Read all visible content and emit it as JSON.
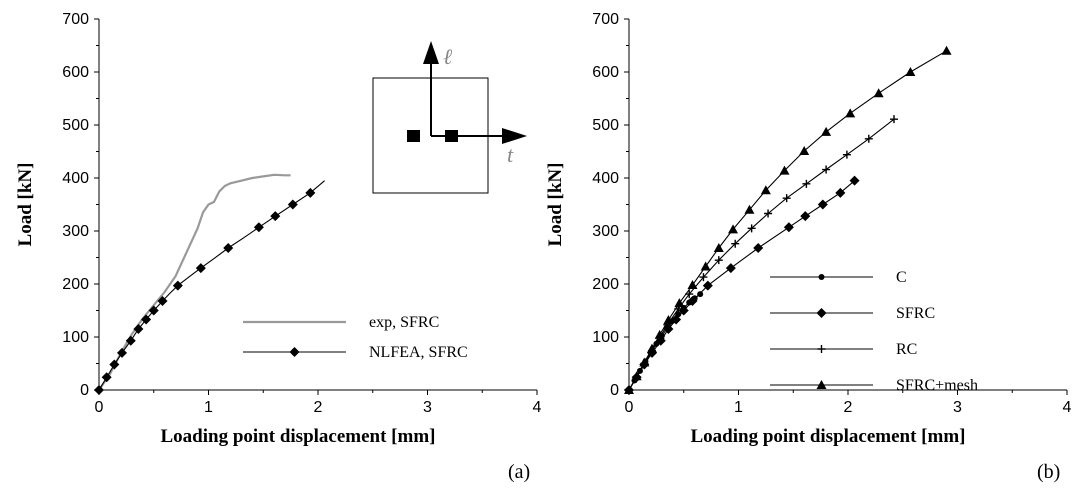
{
  "chart_data": [
    {
      "type": "line",
      "panel_label": "(a)",
      "xlabel": "Loading point displacement [mm]",
      "ylabel": "Load [kN]",
      "xlim": [
        0,
        4
      ],
      "ylim": [
        0,
        700
      ],
      "xticks": [
        "0",
        "1",
        "2",
        "3",
        "4"
      ],
      "yticks": [
        "0",
        "100",
        "200",
        "300",
        "400",
        "500",
        "600",
        "700"
      ],
      "grid": false,
      "legend_position": "bottom-right",
      "inset": {
        "longitudinal_label": "ℓ",
        "transverse_label": "t"
      },
      "series": [
        {
          "name": "exp, SFRC",
          "color": "#999999",
          "marker": "none",
          "x": [
            0,
            0.1,
            0.2,
            0.3,
            0.4,
            0.5,
            0.6,
            0.7,
            0.8,
            0.9,
            0.95,
            1.0,
            1.05,
            1.1,
            1.15,
            1.2,
            1.3,
            1.4,
            1.5,
            1.6,
            1.7,
            1.75
          ],
          "y": [
            0,
            30,
            70,
            105,
            135,
            160,
            185,
            215,
            260,
            305,
            335,
            350,
            355,
            375,
            385,
            390,
            395,
            400,
            403,
            406,
            405,
            405
          ]
        },
        {
          "name": "NLFEA, SFRC",
          "color": "#000000",
          "marker": "diamond",
          "x": [
            0,
            0.07,
            0.14,
            0.21,
            0.29,
            0.36,
            0.43,
            0.5,
            0.58,
            0.65,
            0.72,
            0.82,
            0.93,
            1.05,
            1.18,
            1.32,
            1.46,
            1.61,
            1.77,
            1.93,
            2.06
          ],
          "y": [
            0,
            24,
            48,
            70,
            93,
            115,
            133,
            150,
            168,
            183,
            197,
            213,
            230,
            248,
            268,
            287,
            307,
            328,
            350,
            372,
            395
          ],
          "marker_x": [
            0,
            0.07,
            0.14,
            0.21,
            0.29,
            0.36,
            0.43,
            0.5,
            0.58,
            0.72,
            0.93,
            1.18,
            1.46,
            1.61,
            1.77,
            1.93
          ],
          "marker_y": [
            0,
            24,
            48,
            70,
            93,
            115,
            133,
            150,
            168,
            197,
            230,
            268,
            307,
            328,
            350,
            372
          ]
        }
      ]
    },
    {
      "type": "line",
      "panel_label": "(b)",
      "xlabel": "Loading point displacement [mm]",
      "ylabel": "Load [kN]",
      "xlim": [
        0,
        4
      ],
      "ylim": [
        0,
        700
      ],
      "xticks": [
        "0",
        "1",
        "2",
        "3",
        "4"
      ],
      "yticks": [
        "0",
        "100",
        "200",
        "300",
        "400",
        "500",
        "600",
        "700"
      ],
      "grid": false,
      "legend_position": "bottom-right",
      "series": [
        {
          "name": "C",
          "color": "#000000",
          "marker": "circle",
          "x": [
            0,
            0.05,
            0.1,
            0.15,
            0.2,
            0.25,
            0.3,
            0.35,
            0.4,
            0.45,
            0.5,
            0.55,
            0.6,
            0.65
          ],
          "y": [
            0,
            18,
            36,
            54,
            70,
            87,
            102,
            117,
            131,
            143,
            155,
            165,
            173,
            181
          ]
        },
        {
          "name": "SFRC",
          "color": "#000000",
          "marker": "diamond",
          "x": [
            0,
            0.07,
            0.14,
            0.21,
            0.29,
            0.36,
            0.43,
            0.5,
            0.58,
            0.72,
            0.93,
            1.18,
            1.46,
            1.61,
            1.77,
            1.93,
            2.06
          ],
          "y": [
            0,
            24,
            48,
            70,
            93,
            115,
            133,
            150,
            168,
            197,
            230,
            268,
            307,
            328,
            350,
            372,
            395
          ]
        },
        {
          "name": "RC",
          "color": "#000000",
          "marker": "plus",
          "x": [
            0,
            0.07,
            0.14,
            0.21,
            0.28,
            0.35,
            0.45,
            0.55,
            0.68,
            0.82,
            0.97,
            1.12,
            1.27,
            1.44,
            1.62,
            1.8,
            1.99,
            2.19,
            2.42
          ],
          "y": [
            0,
            25,
            50,
            74,
            99,
            123,
            153,
            181,
            213,
            245,
            276,
            305,
            333,
            362,
            389,
            416,
            444,
            474,
            511
          ]
        },
        {
          "name": "SFRC+mesh",
          "color": "#000000",
          "marker": "triangle",
          "x": [
            0,
            0.07,
            0.14,
            0.21,
            0.28,
            0.36,
            0.46,
            0.58,
            0.7,
            0.82,
            0.95,
            1.1,
            1.25,
            1.42,
            1.6,
            1.8,
            2.02,
            2.28,
            2.57,
            2.9
          ],
          "y": [
            0,
            26,
            52,
            78,
            104,
            132,
            164,
            198,
            233,
            268,
            303,
            340,
            377,
            414,
            451,
            487,
            522,
            560,
            600,
            640
          ]
        }
      ]
    }
  ]
}
